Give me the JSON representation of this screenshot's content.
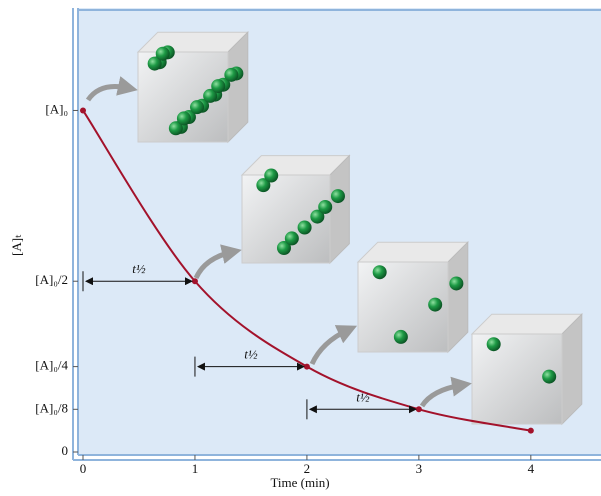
{
  "chart_data": {
    "type": "line",
    "xlabel": "Time (min)",
    "ylabel": "[A]ₜ",
    "xlim": [
      0,
      4.6
    ],
    "ylim": [
      0,
      1.3
    ],
    "xticks": [
      0,
      1,
      2,
      3,
      4
    ],
    "yticks": [
      0,
      {
        "value": 0.125,
        "label": "[A]₀/8"
      },
      {
        "value": 0.25,
        "label": "[A]₀/4"
      },
      {
        "value": 0.5,
        "label": "[A]₀/2"
      },
      {
        "value": 1,
        "label": "[A]₀"
      }
    ],
    "series": [
      {
        "color": "#a3122b",
        "x": [
          0,
          1,
          2,
          3,
          4
        ],
        "values": [
          1,
          0.5,
          0.25,
          0.125,
          0.0625
        ]
      }
    ],
    "annotations": [
      "t½",
      "t½",
      "t½"
    ]
  }
}
